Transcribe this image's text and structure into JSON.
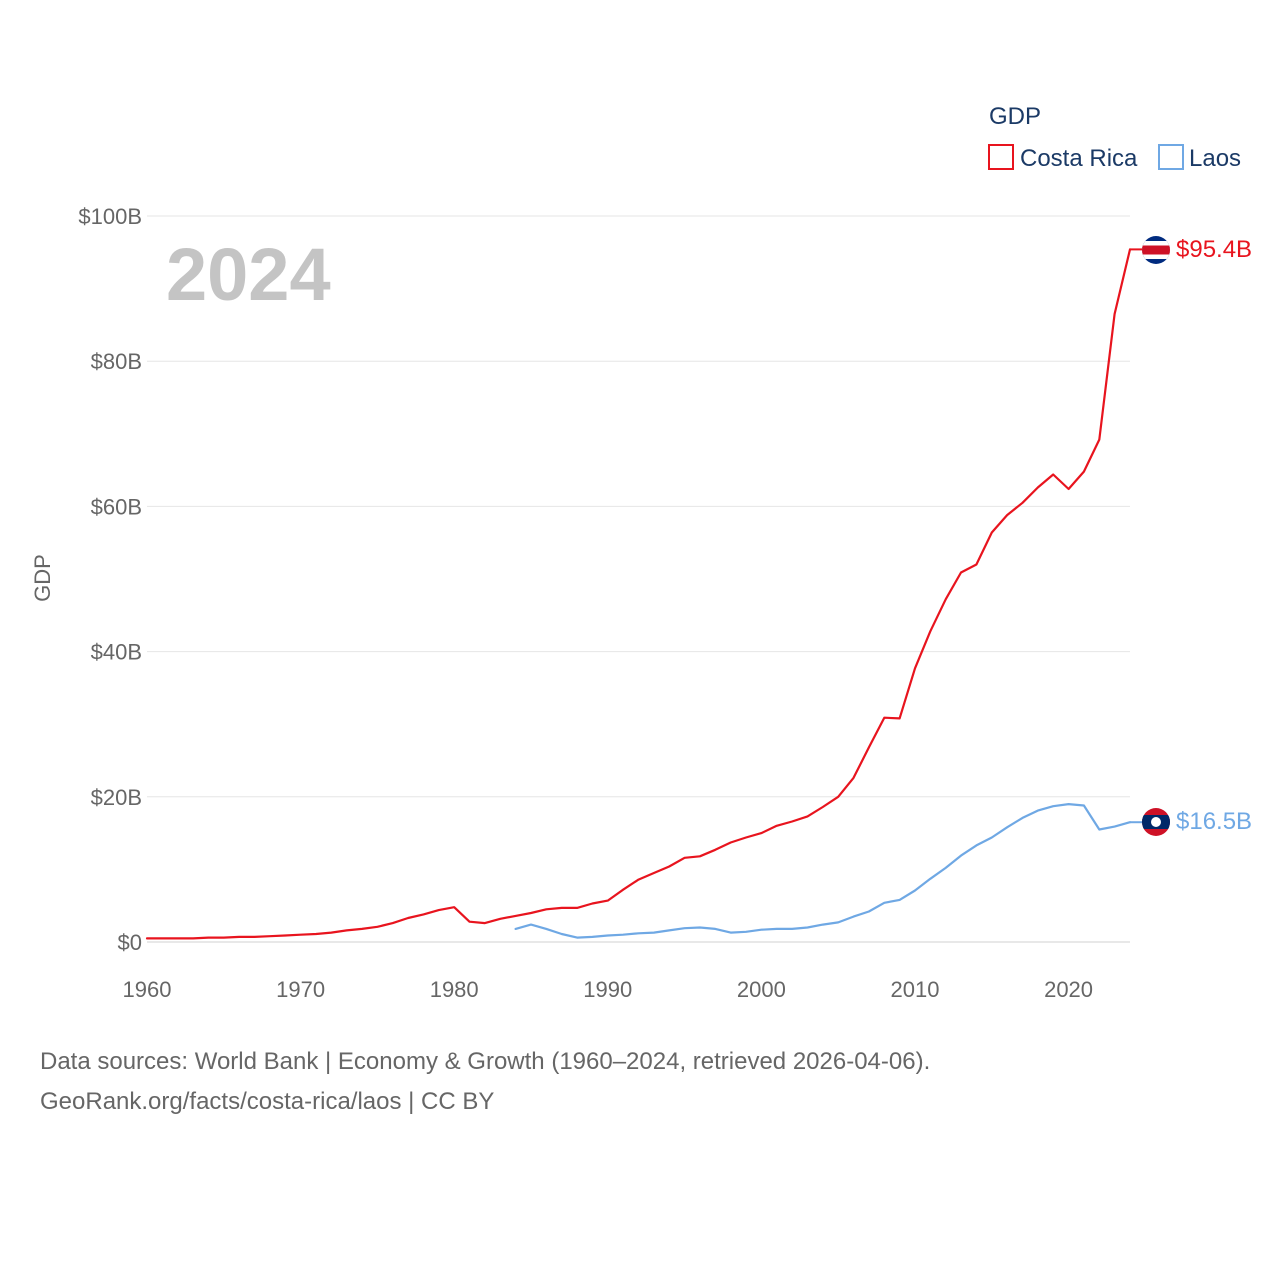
{
  "chart_data": {
    "type": "line",
    "title": "",
    "year_display": "2024",
    "legend": {
      "title": "GDP",
      "position": "top-right"
    },
    "ylabel": "GDP",
    "xlabel": "",
    "xlim": [
      1960,
      2024
    ],
    "ylim": [
      0,
      100
    ],
    "y_unit": "billions USD",
    "x_ticks": [
      1960,
      1970,
      1980,
      1990,
      2000,
      2010,
      2020
    ],
    "x_tick_labels": [
      "1960",
      "1970",
      "1980",
      "1990",
      "2000",
      "2010",
      "2020"
    ],
    "y_ticks": [
      0,
      20,
      40,
      60,
      80,
      100
    ],
    "y_tick_labels": [
      "$0",
      "$20B",
      "$40B",
      "$60B",
      "$80B",
      "$100B"
    ],
    "grid": true,
    "series": [
      {
        "name": "Costa Rica",
        "color": "#e8141e",
        "end_label": "$95.4B",
        "x": [
          1960,
          1961,
          1962,
          1963,
          1964,
          1965,
          1966,
          1967,
          1968,
          1969,
          1970,
          1971,
          1972,
          1973,
          1974,
          1975,
          1976,
          1977,
          1978,
          1979,
          1980,
          1981,
          1982,
          1983,
          1984,
          1985,
          1986,
          1987,
          1988,
          1989,
          1990,
          1991,
          1992,
          1993,
          1994,
          1995,
          1996,
          1997,
          1998,
          1999,
          2000,
          2001,
          2002,
          2003,
          2004,
          2005,
          2006,
          2007,
          2008,
          2009,
          2010,
          2011,
          2012,
          2013,
          2014,
          2015,
          2016,
          2017,
          2018,
          2019,
          2020,
          2021,
          2022,
          2023,
          2024
        ],
        "values": [
          0.5,
          0.5,
          0.5,
          0.5,
          0.6,
          0.6,
          0.7,
          0.7,
          0.8,
          0.9,
          1.0,
          1.1,
          1.3,
          1.6,
          1.8,
          2.1,
          2.6,
          3.3,
          3.8,
          4.4,
          4.8,
          2.8,
          2.6,
          3.2,
          3.6,
          4.0,
          4.5,
          4.7,
          4.7,
          5.3,
          5.7,
          7.2,
          8.6,
          9.5,
          10.4,
          11.6,
          11.8,
          12.7,
          13.7,
          14.4,
          15.0,
          16.0,
          16.6,
          17.3,
          18.6,
          20.0,
          22.6,
          26.8,
          30.9,
          30.8,
          37.7,
          42.8,
          47.2,
          50.9,
          52.0,
          56.4,
          58.8,
          60.5,
          62.6,
          64.4,
          62.4,
          64.8,
          69.2,
          86.5,
          95.4
        ]
      },
      {
        "name": "Laos",
        "color": "#6fa8e4",
        "end_label": "$16.5B",
        "x": [
          1984,
          1985,
          1986,
          1987,
          1988,
          1989,
          1990,
          1991,
          1992,
          1993,
          1994,
          1995,
          1996,
          1997,
          1998,
          1999,
          2000,
          2001,
          2002,
          2003,
          2004,
          2005,
          2006,
          2007,
          2008,
          2009,
          2010,
          2011,
          2012,
          2013,
          2014,
          2015,
          2016,
          2017,
          2018,
          2019,
          2020,
          2021,
          2022,
          2023,
          2024
        ],
        "values": [
          1.8,
          2.4,
          1.8,
          1.1,
          0.6,
          0.7,
          0.9,
          1.0,
          1.2,
          1.3,
          1.6,
          1.9,
          2.0,
          1.8,
          1.3,
          1.4,
          1.7,
          1.8,
          1.8,
          2.0,
          2.4,
          2.7,
          3.5,
          4.2,
          5.4,
          5.8,
          7.1,
          8.7,
          10.2,
          11.9,
          13.3,
          14.4,
          15.8,
          17.1,
          18.1,
          18.7,
          19.0,
          18.8,
          15.5,
          15.9,
          16.5
        ]
      }
    ]
  },
  "footer": {
    "line1": "Data sources: World Bank | Economy & Growth (1960–2024, retrieved 2026-04-06).",
    "line2": "GeoRank.org/facts/costa-rica/laos | CC BY"
  }
}
